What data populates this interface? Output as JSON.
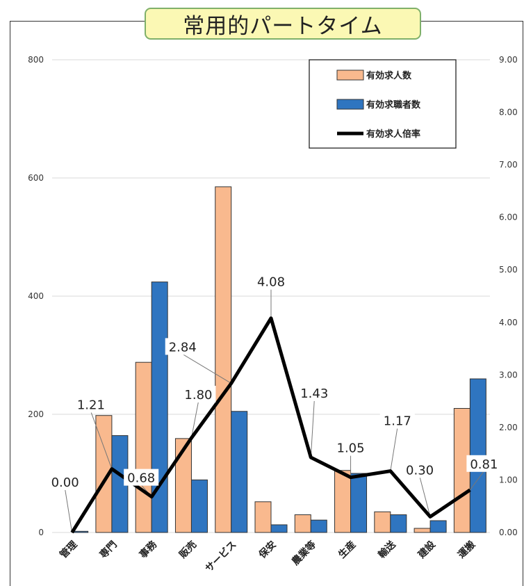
{
  "chart_data": {
    "type": "bar",
    "title": "常用的パートタイム",
    "categories": [
      "管理",
      "専門",
      "事務",
      "販売",
      "サービス",
      "保安",
      "農業等",
      "生産",
      "輸送",
      "建設",
      "運搬"
    ],
    "series": [
      {
        "name": "有効求人数",
        "axis": "left",
        "type": "bar",
        "color": "#f9b98e",
        "values": [
          0,
          198,
          288,
          159,
          585,
          52,
          30,
          105,
          35,
          7,
          210
        ]
      },
      {
        "name": "有効求職者数",
        "axis": "left",
        "type": "bar",
        "color": "#2f75c0",
        "values": [
          2,
          164,
          424,
          89,
          205,
          13,
          21,
          100,
          30,
          20,
          260
        ]
      },
      {
        "name": "有効求人倍率",
        "axis": "right",
        "type": "line",
        "color": "#000000",
        "values": [
          0.0,
          1.21,
          0.68,
          1.8,
          2.84,
          4.08,
          1.43,
          1.05,
          1.17,
          0.3,
          0.81
        ],
        "labels": [
          "0.00",
          "1.21",
          "0.68",
          "1.80",
          "2.84",
          "4.08",
          "1.43",
          "1.05",
          "1.17",
          "0.30",
          "0.81"
        ]
      }
    ],
    "y_left": {
      "ylim": [
        0,
        800
      ],
      "ticks": [
        "0",
        "200",
        "400",
        "600",
        "800"
      ],
      "tick_values": [
        0,
        200,
        400,
        600,
        800
      ]
    },
    "y_right": {
      "ylim": [
        0,
        9
      ],
      "ticks": [
        "0.00",
        "1.00",
        "2.00",
        "3.00",
        "4.00",
        "5.00",
        "6.00",
        "7.00",
        "8.00",
        "9.00"
      ],
      "tick_values": [
        0,
        1,
        2,
        3,
        4,
        5,
        6,
        7,
        8,
        9
      ]
    },
    "legend": {
      "placement": "top-right",
      "entries": [
        "有効求人数",
        "有効求職者数",
        "有効求人倍率"
      ]
    },
    "grid": true
  }
}
